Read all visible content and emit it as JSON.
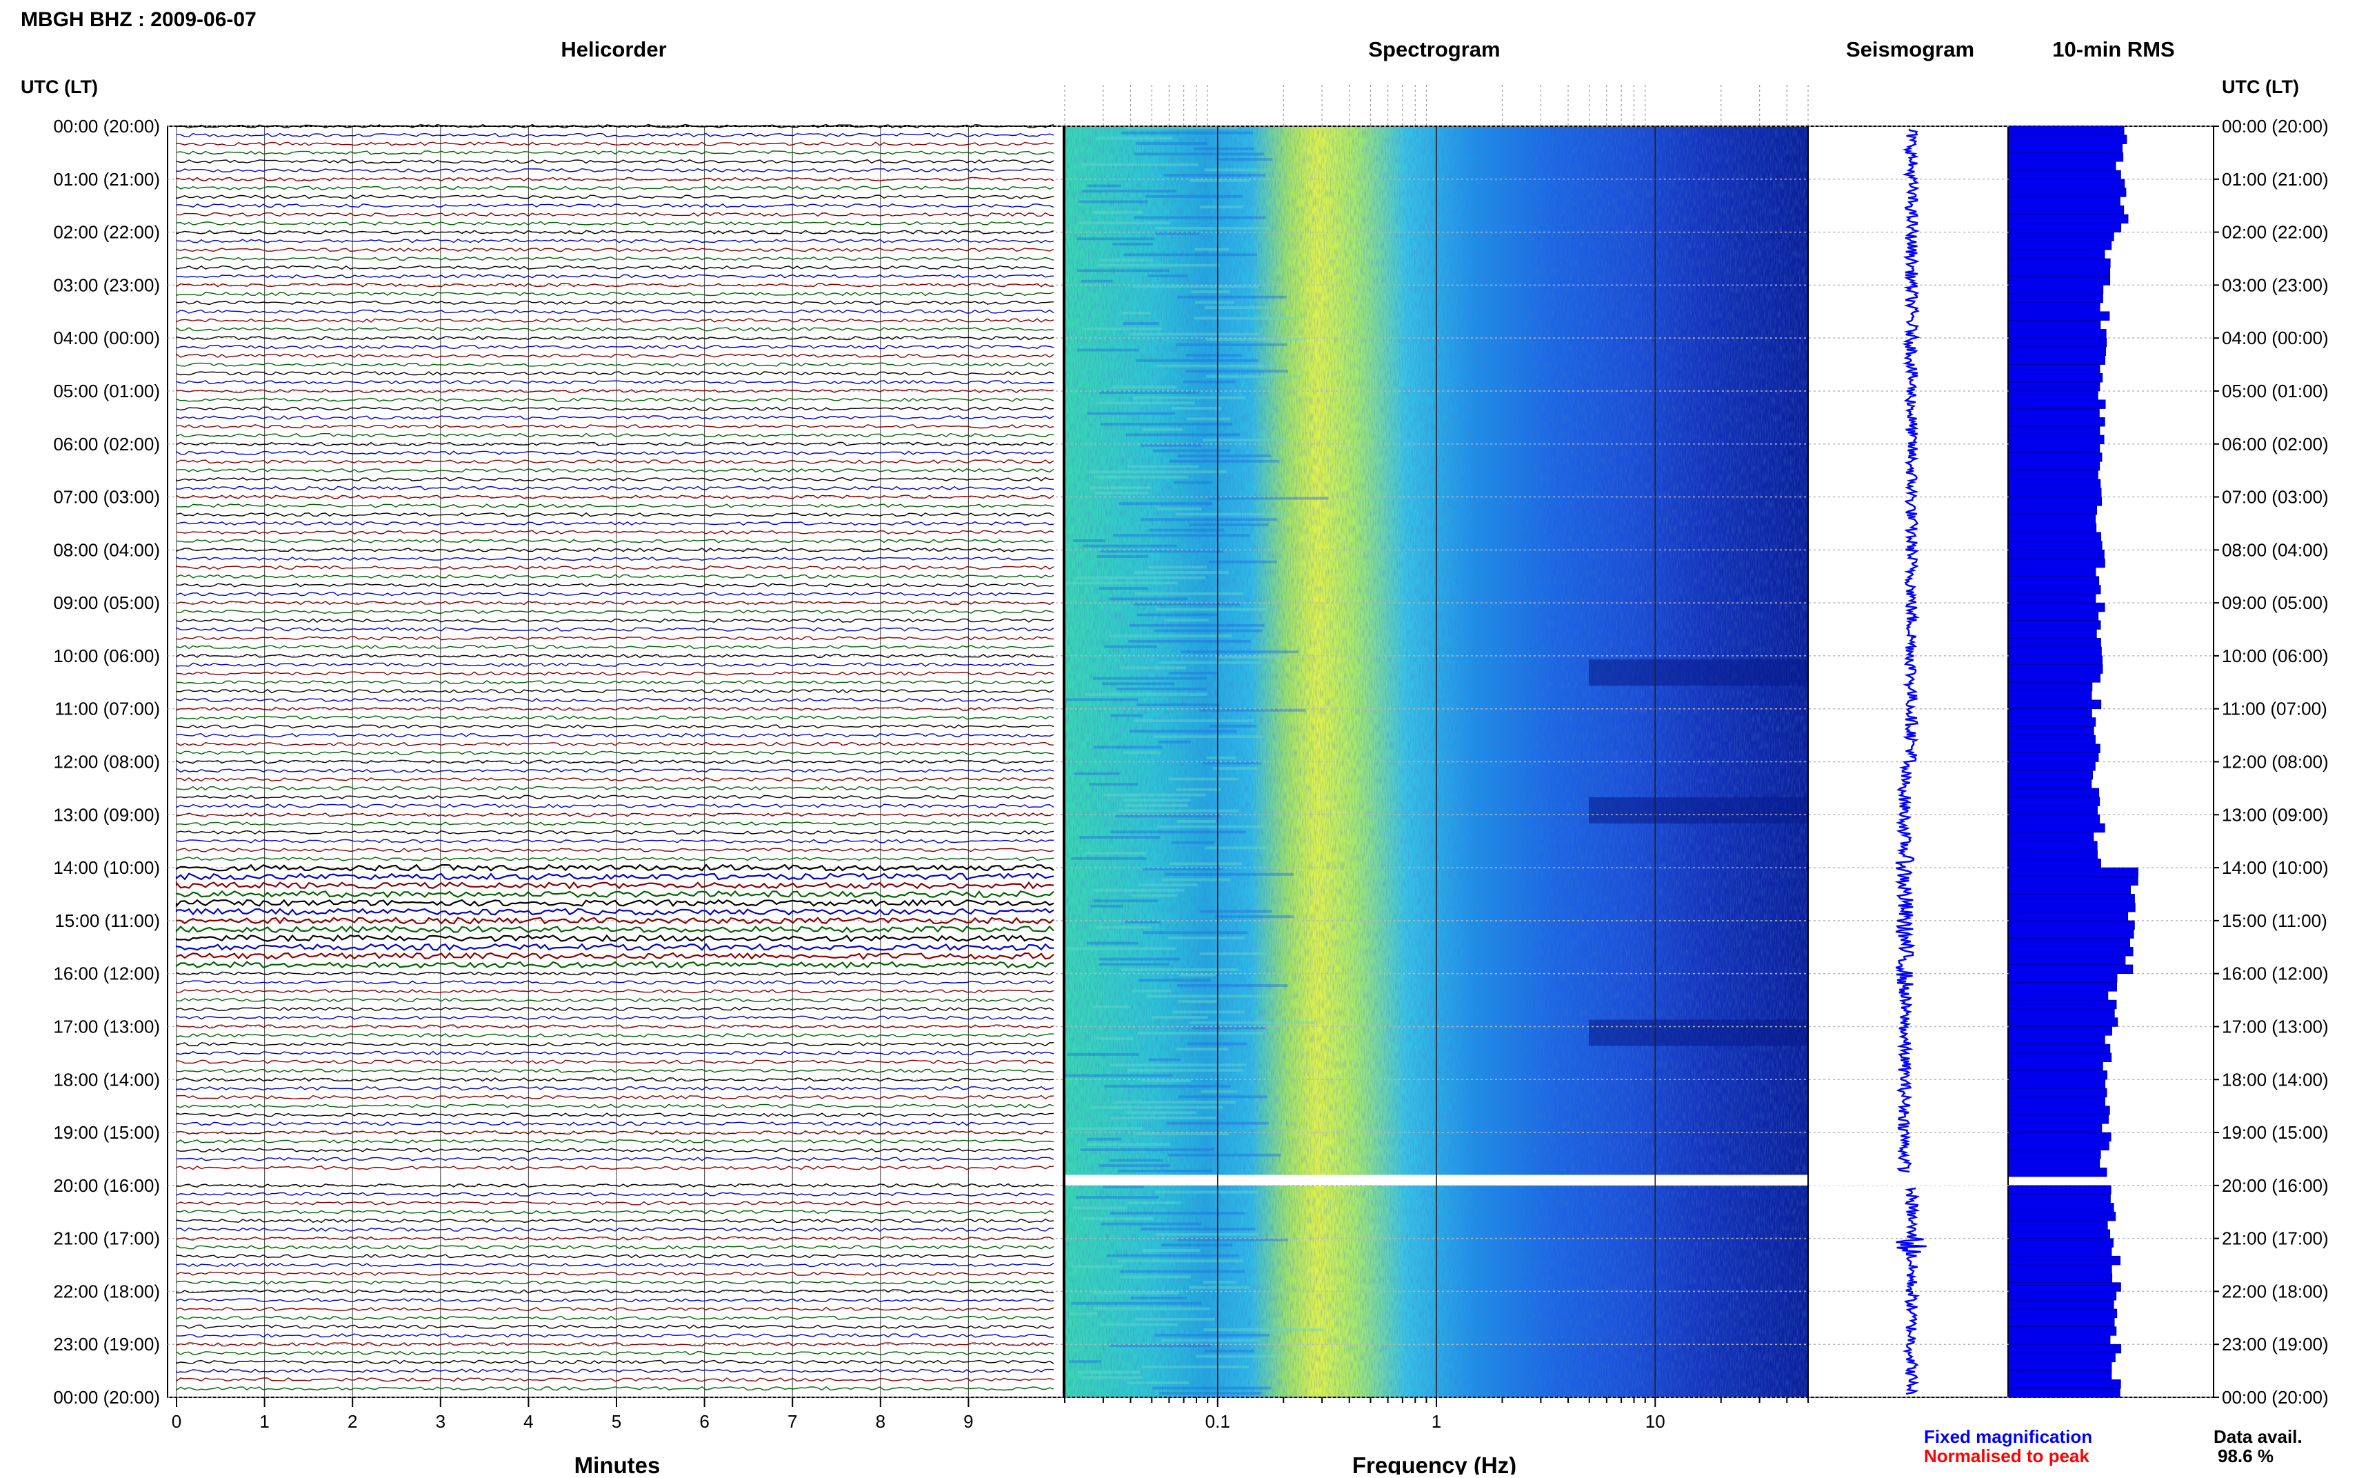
{
  "header": {
    "station_title": "MBGH BHZ : 2009-06-07",
    "helicorder_title": "Helicorder",
    "spectrogram_title": "Spectrogram",
    "seismogram_title": "Seismogram",
    "rms_title": "10-min RMS",
    "axis_header_left": "UTC (LT)",
    "axis_header_right": "UTC (LT)"
  },
  "footer": {
    "minutes_label": "Minutes",
    "frequency_label": "Frequency (Hz)",
    "fixed_magnification": "Fixed magnification",
    "normalised_to_peak": "Normalised to peak",
    "data_avail_label": "Data avail.",
    "data_avail_value": "98.6 %"
  },
  "colors": {
    "trace_cycle": [
      "#000000",
      "#0000cc",
      "#8b0000",
      "#006400"
    ],
    "fixed_magnification": "#0000ff",
    "normalised_to_peak": "#ff0000",
    "rms_bar": "#0000ee",
    "seismogram": "#0000ff"
  },
  "chart_data": [
    {
      "type": "line",
      "name": "helicorder",
      "title": "Helicorder",
      "xlabel": "Minutes",
      "ylabel": "UTC (LT)",
      "x_ticks": [
        "0",
        "1",
        "2",
        "3",
        "4",
        "5",
        "6",
        "7",
        "8",
        "9"
      ],
      "xlim": [
        0,
        10
      ],
      "y_ticks": [
        "00:00 (20:00)",
        "01:00 (21:00)",
        "02:00 (22:00)",
        "03:00 (23:00)",
        "04:00 (00:00)",
        "05:00 (01:00)",
        "06:00 (02:00)",
        "07:00 (03:00)",
        "08:00 (04:00)",
        "09:00 (05:00)",
        "10:00 (06:00)",
        "11:00 (07:00)",
        "12:00 (08:00)",
        "13:00 (09:00)",
        "14:00 (10:00)",
        "15:00 (11:00)",
        "16:00 (12:00)",
        "17:00 (13:00)",
        "18:00 (14:00)",
        "19:00 (15:00)",
        "20:00 (16:00)",
        "21:00 (17:00)",
        "22:00 (18:00)",
        "23:00 (19:00)",
        "00:00 (20:00)"
      ],
      "lines_per_hour": 6,
      "gap_hours": [
        19.8,
        20.0
      ],
      "grid": true
    },
    {
      "type": "heatmap",
      "name": "spectrogram",
      "title": "Spectrogram",
      "xlabel": "Frequency (Hz)",
      "x_scale": "log",
      "xlim": [
        0.02,
        50
      ],
      "x_ticks": [
        "0.1",
        "1",
        "10"
      ],
      "gap_hours": [
        19.8,
        20.0
      ],
      "colormap": "blue-cyan-yellow"
    },
    {
      "type": "line",
      "name": "seismogram",
      "title": "Seismogram",
      "gap_hours": [
        19.8,
        20.0
      ],
      "event_hours": [
        21.0,
        21.3
      ]
    },
    {
      "type": "bar",
      "name": "rms",
      "title": "10-min RMS",
      "orientation": "horizontal",
      "hours": [
        0,
        24
      ],
      "gap_hours": [
        19.8,
        20.0
      ],
      "values_per_hour": [
        0.56,
        0.58,
        0.5,
        0.48,
        0.47,
        0.47,
        0.46,
        0.46,
        0.45,
        0.45,
        0.44,
        0.44,
        0.44,
        0.45,
        0.62,
        0.6,
        0.52,
        0.49,
        0.48,
        0.48,
        0.52,
        0.54,
        0.52,
        0.53
      ]
    }
  ]
}
